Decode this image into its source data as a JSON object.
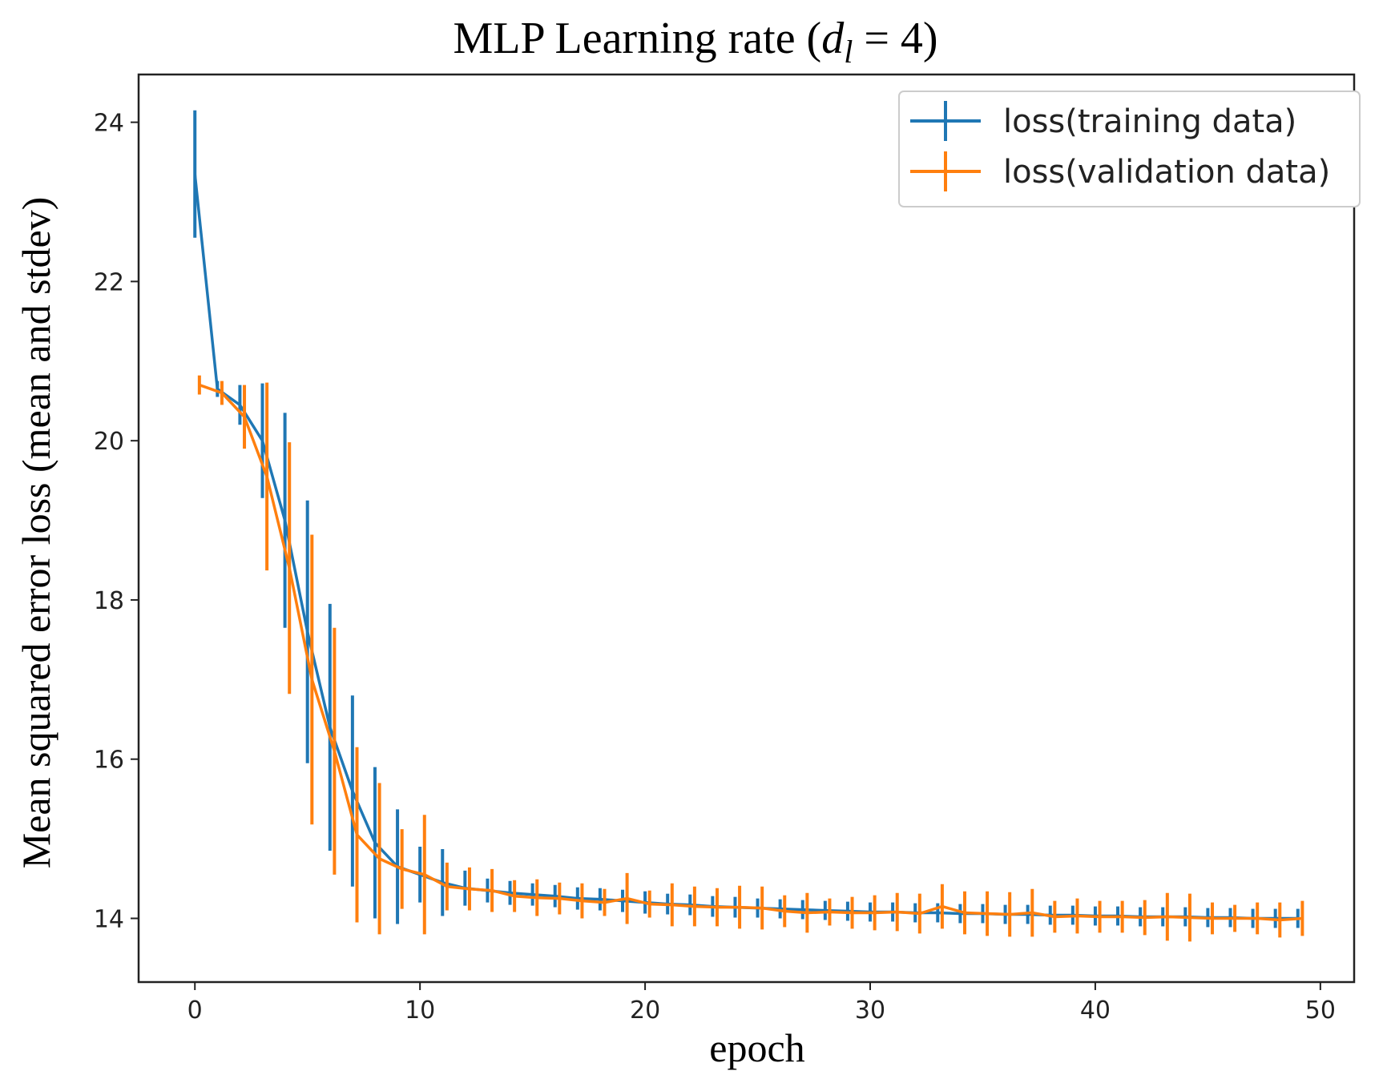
{
  "chart_data": {
    "type": "line",
    "title_main": "MLP Learning rate (",
    "title_var": "d",
    "title_sub": "l",
    "title_rest": " = 4)",
    "xlabel": "epoch",
    "ylabel": "Mean squared error loss (mean and stdev)",
    "xlim": [
      -2.5,
      51.5
    ],
    "ylim": [
      13.2,
      24.6
    ],
    "xticks": [
      0,
      10,
      20,
      30,
      40,
      50
    ],
    "yticks": [
      14,
      16,
      18,
      20,
      22,
      24
    ],
    "legend_position": "top-right",
    "series": [
      {
        "name": "loss(training data)",
        "color": "#1f77b4",
        "x": [
          0,
          1,
          2,
          3,
          4,
          5,
          6,
          7,
          8,
          9,
          10,
          11,
          12,
          13,
          14,
          15,
          16,
          17,
          18,
          19,
          20,
          21,
          22,
          23,
          24,
          25,
          26,
          27,
          28,
          29,
          30,
          31,
          32,
          33,
          34,
          35,
          36,
          37,
          38,
          39,
          40,
          41,
          42,
          43,
          44,
          45,
          46,
          47,
          48,
          49
        ],
        "values": [
          23.35,
          20.65,
          20.45,
          20.0,
          19.0,
          17.6,
          16.4,
          15.6,
          14.95,
          14.65,
          14.55,
          14.45,
          14.38,
          14.35,
          14.32,
          14.3,
          14.28,
          14.25,
          14.24,
          14.22,
          14.2,
          14.18,
          14.17,
          14.15,
          14.14,
          14.13,
          14.12,
          14.11,
          14.1,
          14.09,
          14.08,
          14.08,
          14.07,
          14.07,
          14.06,
          14.06,
          14.05,
          14.05,
          14.04,
          14.04,
          14.03,
          14.03,
          14.02,
          14.02,
          14.02,
          14.01,
          14.01,
          14.0,
          14.0,
          14.0
        ],
        "errors": [
          0.8,
          0.1,
          0.25,
          0.72,
          1.35,
          1.65,
          1.55,
          1.2,
          0.95,
          0.72,
          0.35,
          0.42,
          0.22,
          0.15,
          0.15,
          0.14,
          0.14,
          0.14,
          0.14,
          0.14,
          0.14,
          0.13,
          0.13,
          0.13,
          0.13,
          0.12,
          0.12,
          0.12,
          0.12,
          0.12,
          0.12,
          0.12,
          0.12,
          0.12,
          0.12,
          0.12,
          0.12,
          0.12,
          0.12,
          0.12,
          0.12,
          0.12,
          0.12,
          0.12,
          0.12,
          0.12,
          0.12,
          0.12,
          0.12,
          0.12
        ]
      },
      {
        "name": "loss(validation data)",
        "color": "#ff7f0e",
        "x": [
          0.2,
          1.2,
          2.2,
          3.2,
          4.2,
          5.2,
          6.2,
          7.2,
          8.2,
          9.2,
          10.2,
          11.2,
          12.2,
          13.2,
          14.2,
          15.2,
          16.2,
          17.2,
          18.2,
          19.2,
          20.2,
          21.2,
          22.2,
          23.2,
          24.2,
          25.2,
          26.2,
          27.2,
          28.2,
          29.2,
          30.2,
          31.2,
          32.2,
          33.2,
          34.2,
          35.2,
          36.2,
          37.2,
          38.2,
          39.2,
          40.2,
          41.2,
          42.2,
          43.2,
          44.2,
          45.2,
          46.2,
          47.2,
          48.2,
          49.2
        ],
        "values": [
          20.7,
          20.6,
          20.3,
          19.55,
          18.4,
          17.0,
          16.1,
          15.05,
          14.75,
          14.62,
          14.55,
          14.4,
          14.37,
          14.35,
          14.28,
          14.26,
          14.25,
          14.22,
          14.2,
          14.25,
          14.18,
          14.17,
          14.15,
          14.14,
          14.14,
          14.13,
          14.09,
          14.07,
          14.08,
          14.07,
          14.07,
          14.08,
          14.06,
          14.15,
          14.07,
          14.06,
          14.05,
          14.07,
          14.02,
          14.03,
          14.02,
          14.02,
          14.01,
          14.02,
          14.01,
          14.0,
          14.0,
          14.0,
          13.98,
          14.0
        ],
        "errors": [
          0.12,
          0.15,
          0.4,
          1.18,
          1.58,
          1.82,
          1.55,
          1.1,
          0.95,
          0.5,
          0.75,
          0.3,
          0.27,
          0.27,
          0.2,
          0.23,
          0.2,
          0.22,
          0.17,
          0.32,
          0.17,
          0.27,
          0.25,
          0.24,
          0.27,
          0.27,
          0.2,
          0.25,
          0.17,
          0.2,
          0.22,
          0.24,
          0.25,
          0.28,
          0.27,
          0.28,
          0.28,
          0.3,
          0.2,
          0.22,
          0.2,
          0.2,
          0.22,
          0.3,
          0.3,
          0.2,
          0.17,
          0.2,
          0.22,
          0.22
        ]
      }
    ]
  }
}
